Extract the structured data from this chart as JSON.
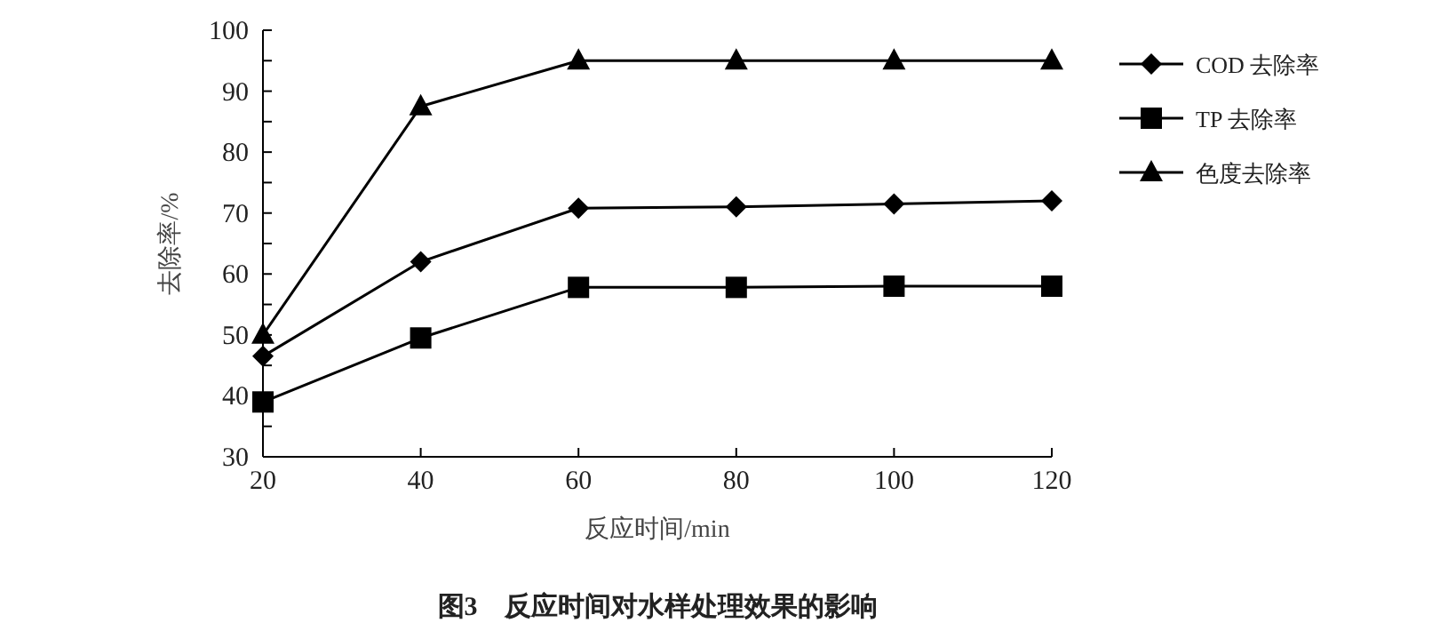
{
  "chart_data": {
    "type": "line",
    "title": "图3　反应时间对水样处理效果的影响",
    "xlabel": "反应时间/min",
    "ylabel": "去除率/%",
    "x": [
      20,
      40,
      60,
      80,
      100,
      120
    ],
    "series": [
      {
        "name": "COD 去除率",
        "color": "#000000",
        "marker": "diamond",
        "values": [
          46.5,
          62,
          70.8,
          71,
          71.5,
          72
        ]
      },
      {
        "name": "TP 去除率",
        "color": "#000000",
        "marker": "square",
        "values": [
          39,
          49.5,
          57.8,
          57.8,
          58,
          58
        ]
      },
      {
        "name": "色度去除率",
        "color": "#000000",
        "marker": "triangle",
        "values": [
          50,
          87.5,
          95,
          95,
          95,
          95
        ]
      }
    ],
    "xlim": [
      20,
      120
    ],
    "xticks": [
      20,
      40,
      60,
      80,
      100,
      120
    ],
    "ylim": [
      30,
      100
    ],
    "yticks": [
      30,
      {
        "value": 35,
        "label": null
      },
      40,
      {
        "value": 45,
        "label": null
      },
      50,
      {
        "value": 55,
        "label": null
      },
      60,
      {
        "value": 65,
        "label": null
      },
      70,
      {
        "value": 75,
        "label": null
      },
      80,
      {
        "value": 85,
        "label": null
      },
      90,
      {
        "value": 95,
        "label": null
      },
      100
    ],
    "grid": false,
    "legend": "right",
    "line_style": "solid"
  }
}
